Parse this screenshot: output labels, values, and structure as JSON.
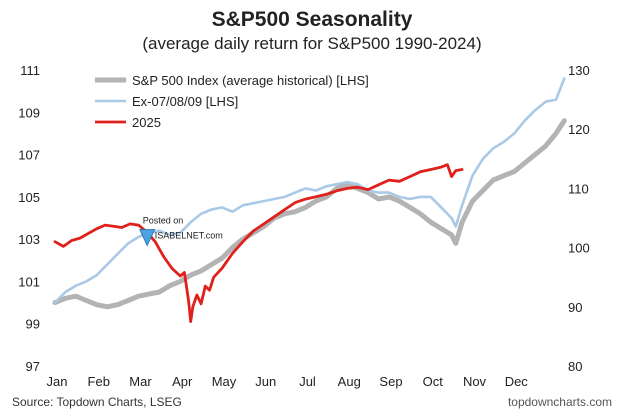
{
  "chart_data": {
    "type": "line",
    "title": "S&P500 Seasonality",
    "subtitle": "(average daily return for S&P500 1990-2024)",
    "x_categories": [
      "Jan",
      "Feb",
      "Mar",
      "Apr",
      "May",
      "Jun",
      "Jul",
      "Aug",
      "Sep",
      "Oct",
      "Nov",
      "Dec"
    ],
    "x_range": [
      0,
      12
    ],
    "y_left": {
      "ticks": [
        97,
        99,
        101,
        103,
        105,
        107,
        109,
        111
      ],
      "range": [
        97,
        111
      ]
    },
    "y_right": {
      "ticks": [
        80,
        90,
        100,
        110,
        120,
        130
      ],
      "range": [
        80,
        130
      ]
    },
    "grid": false,
    "legend_position": "top-left",
    "series": [
      {
        "name": "S&P 500 Index (average historical) [LHS]",
        "color": "#b3b3b3",
        "axis": "left",
        "points": [
          [
            0.0,
            100.0
          ],
          [
            0.25,
            100.2
          ],
          [
            0.5,
            100.3
          ],
          [
            0.75,
            100.1
          ],
          [
            1.0,
            99.9
          ],
          [
            1.25,
            99.8
          ],
          [
            1.5,
            99.9
          ],
          [
            1.75,
            100.1
          ],
          [
            2.0,
            100.3
          ],
          [
            2.25,
            100.4
          ],
          [
            2.5,
            100.5
          ],
          [
            2.75,
            100.8
          ],
          [
            3.0,
            101.0
          ],
          [
            3.25,
            101.3
          ],
          [
            3.5,
            101.5
          ],
          [
            3.75,
            101.8
          ],
          [
            4.0,
            102.1
          ],
          [
            4.25,
            102.6
          ],
          [
            4.5,
            103.0
          ],
          [
            4.75,
            103.3
          ],
          [
            5.0,
            103.6
          ],
          [
            5.25,
            104.0
          ],
          [
            5.5,
            104.2
          ],
          [
            5.75,
            104.3
          ],
          [
            6.0,
            104.5
          ],
          [
            6.25,
            104.8
          ],
          [
            6.5,
            105.0
          ],
          [
            6.75,
            105.4
          ],
          [
            7.0,
            105.6
          ],
          [
            7.25,
            105.4
          ],
          [
            7.5,
            105.2
          ],
          [
            7.75,
            104.9
          ],
          [
            8.0,
            105.0
          ],
          [
            8.25,
            104.8
          ],
          [
            8.5,
            104.5
          ],
          [
            8.75,
            104.2
          ],
          [
            9.0,
            103.8
          ],
          [
            9.25,
            103.5
          ],
          [
            9.5,
            103.2
          ],
          [
            9.6,
            102.8
          ],
          [
            9.75,
            103.8
          ],
          [
            10.0,
            104.8
          ],
          [
            10.25,
            105.3
          ],
          [
            10.5,
            105.8
          ],
          [
            10.75,
            106.0
          ],
          [
            11.0,
            106.2
          ],
          [
            11.25,
            106.6
          ],
          [
            11.5,
            107.0
          ],
          [
            11.75,
            107.4
          ],
          [
            12.0,
            108.0
          ],
          [
            12.2,
            108.6
          ]
        ]
      },
      {
        "name": "Ex-07/08/09 [LHS]",
        "color": "#a9c9e6",
        "axis": "left",
        "points": [
          [
            0.0,
            100.0
          ],
          [
            0.25,
            100.5
          ],
          [
            0.5,
            100.8
          ],
          [
            0.75,
            101.0
          ],
          [
            1.0,
            101.3
          ],
          [
            1.25,
            101.8
          ],
          [
            1.5,
            102.3
          ],
          [
            1.75,
            102.8
          ],
          [
            2.0,
            103.1
          ],
          [
            2.25,
            103.3
          ],
          [
            2.5,
            103.4
          ],
          [
            2.75,
            103.2
          ],
          [
            3.0,
            103.3
          ],
          [
            3.25,
            103.8
          ],
          [
            3.5,
            104.2
          ],
          [
            3.75,
            104.4
          ],
          [
            4.0,
            104.5
          ],
          [
            4.25,
            104.3
          ],
          [
            4.5,
            104.6
          ],
          [
            4.75,
            104.7
          ],
          [
            5.0,
            104.8
          ],
          [
            5.25,
            104.9
          ],
          [
            5.5,
            105.0
          ],
          [
            5.75,
            105.2
          ],
          [
            6.0,
            105.4
          ],
          [
            6.25,
            105.3
          ],
          [
            6.5,
            105.5
          ],
          [
            6.75,
            105.6
          ],
          [
            7.0,
            105.7
          ],
          [
            7.25,
            105.6
          ],
          [
            7.5,
            105.3
          ],
          [
            7.75,
            105.2
          ],
          [
            8.0,
            105.2
          ],
          [
            8.25,
            105.0
          ],
          [
            8.5,
            104.9
          ],
          [
            8.75,
            105.0
          ],
          [
            9.0,
            105.0
          ],
          [
            9.25,
            104.5
          ],
          [
            9.5,
            104.0
          ],
          [
            9.6,
            103.6
          ],
          [
            9.75,
            104.6
          ],
          [
            10.0,
            106.0
          ],
          [
            10.25,
            106.8
          ],
          [
            10.5,
            107.3
          ],
          [
            10.75,
            107.6
          ],
          [
            11.0,
            108.0
          ],
          [
            11.25,
            108.6
          ],
          [
            11.5,
            109.1
          ],
          [
            11.75,
            109.5
          ],
          [
            12.0,
            109.6
          ],
          [
            12.2,
            110.6
          ]
        ]
      },
      {
        "name": "2025",
        "color": "#e0201b",
        "axis": "right",
        "points": [
          [
            0.0,
            101.0
          ],
          [
            0.2,
            100.2
          ],
          [
            0.4,
            101.2
          ],
          [
            0.6,
            101.6
          ],
          [
            0.8,
            102.4
          ],
          [
            1.0,
            103.2
          ],
          [
            1.2,
            103.8
          ],
          [
            1.4,
            103.6
          ],
          [
            1.6,
            103.4
          ],
          [
            1.8,
            104.0
          ],
          [
            2.0,
            103.8
          ],
          [
            2.2,
            102.6
          ],
          [
            2.4,
            101.0
          ],
          [
            2.6,
            98.5
          ],
          [
            2.8,
            96.5
          ],
          [
            3.0,
            95.2
          ],
          [
            3.1,
            95.8
          ],
          [
            3.2,
            91.0
          ],
          [
            3.25,
            87.5
          ],
          [
            3.3,
            90.0
          ],
          [
            3.4,
            92.0
          ],
          [
            3.5,
            90.5
          ],
          [
            3.6,
            93.5
          ],
          [
            3.7,
            92.8
          ],
          [
            3.8,
            95.0
          ],
          [
            4.0,
            96.5
          ],
          [
            4.25,
            99.0
          ],
          [
            4.5,
            101.0
          ],
          [
            4.75,
            102.8
          ],
          [
            5.0,
            104.0
          ],
          [
            5.25,
            105.2
          ],
          [
            5.5,
            106.4
          ],
          [
            5.75,
            107.6
          ],
          [
            6.0,
            108.2
          ],
          [
            6.25,
            108.6
          ],
          [
            6.5,
            109.0
          ],
          [
            6.75,
            109.6
          ],
          [
            7.0,
            110.0
          ],
          [
            7.25,
            110.2
          ],
          [
            7.5,
            109.8
          ],
          [
            7.75,
            110.6
          ],
          [
            8.0,
            111.4
          ],
          [
            8.25,
            111.2
          ],
          [
            8.5,
            112.0
          ],
          [
            8.75,
            112.8
          ],
          [
            9.0,
            113.2
          ],
          [
            9.25,
            113.6
          ],
          [
            9.4,
            114.0
          ],
          [
            9.5,
            112.0
          ],
          [
            9.6,
            113.0
          ],
          [
            9.75,
            113.2
          ]
        ]
      }
    ],
    "annotation": {
      "line1": "Posted on",
      "line2": "ISABELNET.com",
      "x": 2.1,
      "y": 103.6
    }
  },
  "footer": {
    "source": "Source: Topdown Charts, LSEG",
    "site": "topdowncharts.com"
  }
}
